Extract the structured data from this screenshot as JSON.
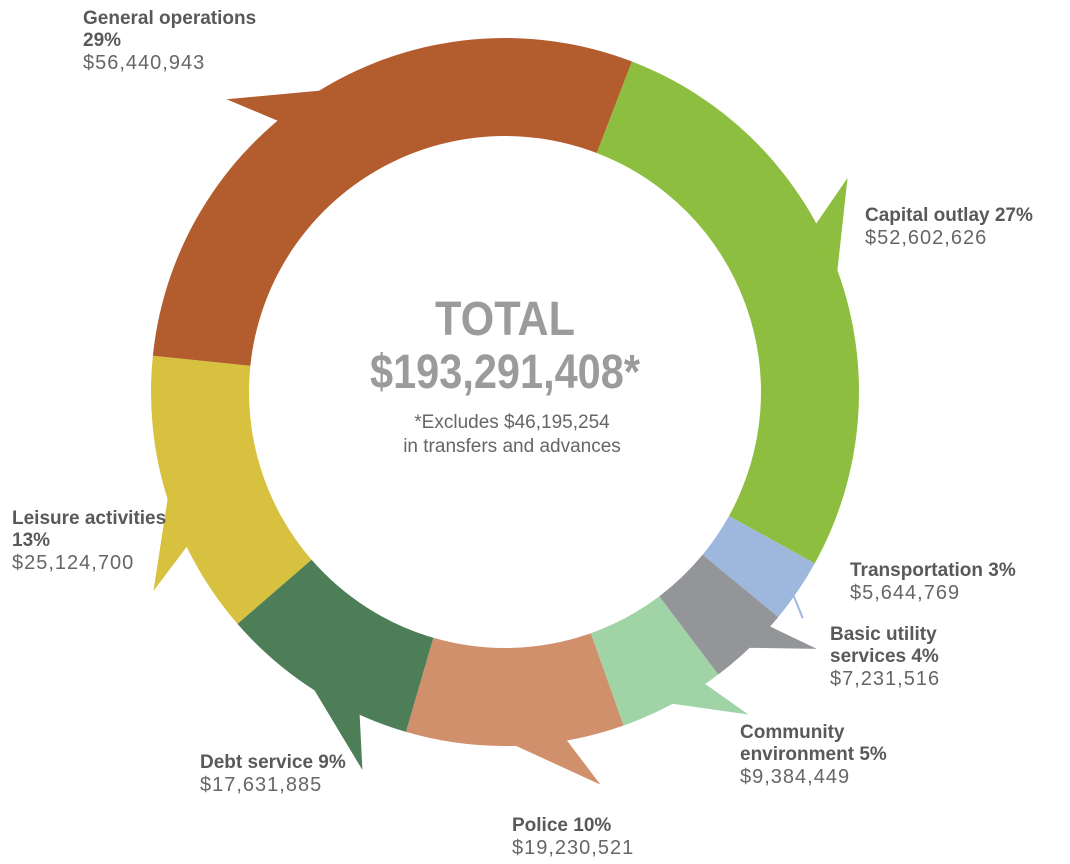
{
  "chart_data": {
    "type": "donut",
    "categories": [
      "Capital outlay",
      "Transportation",
      "Basic utility services",
      "Community environment",
      "Police",
      "Debt service",
      "Leisure activities",
      "General operations"
    ],
    "values": [
      52602626,
      5644769,
      7231516,
      9384449,
      19230521,
      17631885,
      25124700,
      56440943
    ],
    "value_labels": [
      "$52,602,626",
      "$5,644,769",
      "$7,231,516",
      "$9,384,449",
      "$19,230,521",
      "$17,631,885",
      "$25,124,700",
      "$56,440,943"
    ],
    "percent_labels": [
      "27%",
      "3%",
      "4%",
      "5%",
      "10%",
      "9%",
      "13%",
      "29%"
    ],
    "colors": [
      "#8dbe3f",
      "#9db8dc",
      "#939598",
      "#a0d3a6",
      "#d0906c",
      "#4e7e57",
      "#d7c13e",
      "#b35c2e"
    ],
    "center": {
      "title": "TOTAL",
      "total": "$193,291,408*",
      "note": [
        "*Excludes $46,195,254",
        "in transfers and advances"
      ]
    }
  }
}
